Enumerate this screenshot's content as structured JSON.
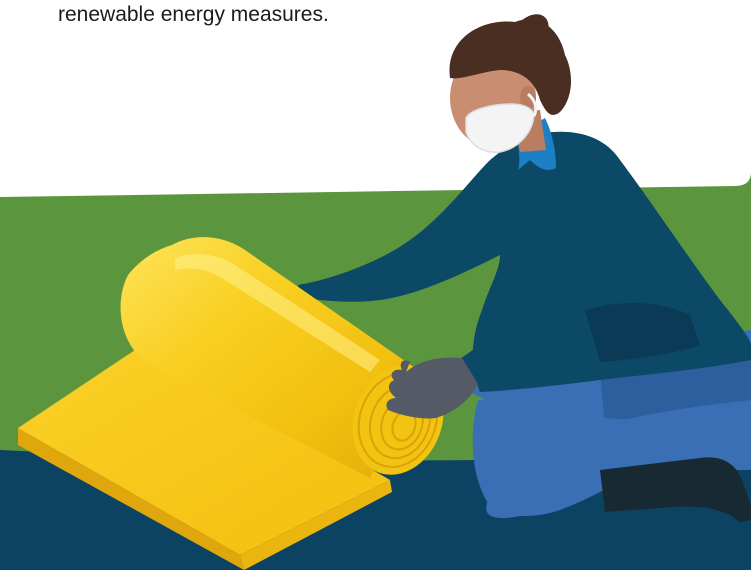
{
  "caption": {
    "text": "renewable energy measures."
  },
  "illustration": {
    "subject": "worker-unrolling-insulation",
    "icons": [
      "person-icon",
      "face-mask-icon",
      "glove-icon",
      "insulation-roll-icon"
    ]
  },
  "colors": {
    "background": "#ffffff",
    "grass": "#5b963f",
    "ground": "#0d4362",
    "shirt": "#0c4966",
    "shirt_shadow": "#0a3a55",
    "collar": "#1d7fc4",
    "jeans": "#3a6fb5",
    "jeans_shadow": "#2d5e9e",
    "boot": "#172a33",
    "hair": "#4a2e22",
    "skin": "#c98e72",
    "mask": "#f4f4f4",
    "glove": "#545a66",
    "insulation_light": "#ffe14a",
    "insulation_mid": "#f5c312",
    "insulation_dark": "#d9a20a"
  }
}
